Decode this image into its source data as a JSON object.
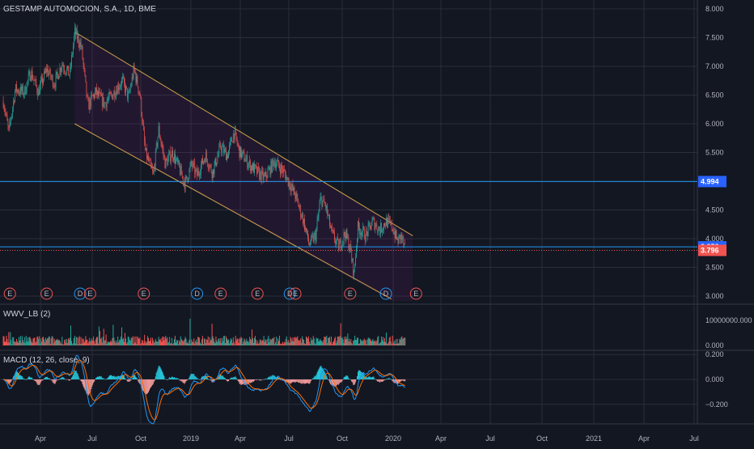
{
  "chart_data": [
    {
      "type": "candlestick",
      "title": "GESTAMP AUTOMOCION, S.A., 1D, BME",
      "x_ticks": [
        "Apr",
        "Jul",
        "Oct",
        "2019",
        "Apr",
        "Jul",
        "Oct",
        "2020",
        "Apr",
        "Jul",
        "Oct",
        "2021",
        "Apr",
        "Jul"
      ],
      "y_ticks": [
        "8.000",
        "7.500",
        "7.000",
        "6.500",
        "6.000",
        "5.500",
        "5.000",
        "4.500",
        "4.000",
        "3.500",
        "3.000"
      ],
      "ylim": [
        3.0,
        8.0
      ],
      "price_path": [
        [
          "2018-01-29",
          6.4
        ],
        [
          "2018-02-08",
          5.85
        ],
        [
          "2018-02-20",
          6.6
        ],
        [
          "2018-03-08",
          6.55
        ],
        [
          "2018-03-20",
          6.9
        ],
        [
          "2018-04-03",
          6.55
        ],
        [
          "2018-04-18",
          6.95
        ],
        [
          "2018-05-02",
          6.7
        ],
        [
          "2018-05-16",
          7.05
        ],
        [
          "2018-05-30",
          6.85
        ],
        [
          "2018-06-08",
          7.6
        ],
        [
          "2018-06-20",
          7.35
        ],
        [
          "2018-07-02",
          6.3
        ],
        [
          "2018-07-16",
          6.55
        ],
        [
          "2018-08-01",
          6.35
        ],
        [
          "2018-08-15",
          6.5
        ],
        [
          "2018-09-03",
          6.75
        ],
        [
          "2018-09-14",
          6.45
        ],
        [
          "2018-09-24",
          6.95
        ],
        [
          "2018-10-05",
          6.5
        ],
        [
          "2018-10-15",
          5.5
        ],
        [
          "2018-10-29",
          5.1
        ],
        [
          "2018-11-08",
          5.9
        ],
        [
          "2018-11-20",
          5.3
        ],
        [
          "2018-12-03",
          5.5
        ],
        [
          "2018-12-14",
          5.25
        ],
        [
          "2018-12-26",
          4.95
        ],
        [
          "2019-01-07",
          5.3
        ],
        [
          "2019-01-17",
          5.1
        ],
        [
          "2019-02-01",
          5.45
        ],
        [
          "2019-02-14",
          5.15
        ],
        [
          "2019-03-01",
          5.6
        ],
        [
          "2019-03-13",
          5.45
        ],
        [
          "2019-03-25",
          5.85
        ],
        [
          "2019-04-05",
          5.5
        ],
        [
          "2019-04-22",
          5.3
        ],
        [
          "2019-05-07",
          5.15
        ],
        [
          "2019-05-20",
          5.05
        ],
        [
          "2019-06-07",
          5.35
        ],
        [
          "2019-06-21",
          5.2
        ],
        [
          "2019-07-05",
          4.95
        ],
        [
          "2019-07-15",
          4.75
        ],
        [
          "2019-07-29",
          4.35
        ],
        [
          "2019-08-09",
          3.9
        ],
        [
          "2019-08-21",
          4.05
        ],
        [
          "2019-08-30",
          4.7
        ],
        [
          "2019-09-09",
          4.55
        ],
        [
          "2019-09-19",
          4.1
        ],
        [
          "2019-10-02",
          3.85
        ],
        [
          "2019-10-14",
          4.1
        ],
        [
          "2019-10-23",
          3.82
        ],
        [
          "2019-10-30",
          3.38
        ],
        [
          "2019-11-06",
          4.2
        ],
        [
          "2019-11-20",
          4.05
        ],
        [
          "2019-12-03",
          4.3
        ],
        [
          "2019-12-16",
          4.15
        ],
        [
          "2019-12-27",
          4.3
        ],
        [
          "2020-01-08",
          4.2
        ],
        [
          "2020-01-17",
          3.95
        ],
        [
          "2020-01-24",
          4.05
        ],
        [
          "2020-01-31",
          3.8
        ]
      ],
      "last_price": "3.796",
      "horizontal_levels": [
        "4.994",
        "3.858"
      ],
      "channel": {
        "upper": [
          [
            "2018-06-08",
            7.6
          ],
          [
            "2020-02-14",
            4.05
          ]
        ],
        "lower": [
          [
            "2018-06-08",
            6.0
          ],
          [
            "2020-01-06",
            2.95
          ]
        ]
      },
      "event_markers": [
        {
          "date": "2018-02-10",
          "label": "E"
        },
        {
          "date": "2018-04-18",
          "label": "E"
        },
        {
          "date": "2018-06-18",
          "label": "D"
        },
        {
          "date": "2018-07-06",
          "label": "E"
        },
        {
          "date": "2018-10-12",
          "label": "E"
        },
        {
          "date": "2019-01-17",
          "label": "D"
        },
        {
          "date": "2019-03-01",
          "label": "E"
        },
        {
          "date": "2019-05-07",
          "label": "E"
        },
        {
          "date": "2019-07-05",
          "label": "D"
        },
        {
          "date": "2019-07-15",
          "label": "E"
        },
        {
          "date": "2019-10-23",
          "label": "E"
        },
        {
          "date": "2019-12-27",
          "label": "D"
        },
        {
          "date": "2020-02-20",
          "label": "E"
        }
      ]
    },
    {
      "type": "histogram",
      "title": "WWV_LB (2)",
      "y_ticks": [
        "10000000.000",
        "0.000"
      ],
      "ylim": [
        0,
        10000000
      ]
    },
    {
      "type": "macd",
      "title": "MACD (12, 26, close, 9)",
      "y_ticks": [
        "0.200",
        "0.000",
        "−0.200"
      ],
      "ylim": [
        -0.3,
        0.2
      ]
    }
  ],
  "colors": {
    "background": "#131722",
    "grid": "#2a2e39",
    "up": "#26a69a",
    "down": "#ef5350",
    "level_line": "#2196f3",
    "channel": "#d1a14a",
    "channel_fill": "#9c27b0",
    "last_tag": "#f05350",
    "level_tag": "#2962ff",
    "volume_up": "#26a69a",
    "volume_down": "#ef5350",
    "macd_line": "#2196f3",
    "signal_line": "#ff6d00",
    "hist_up": "#26c6da",
    "hist_down": "#ef9a9a"
  }
}
